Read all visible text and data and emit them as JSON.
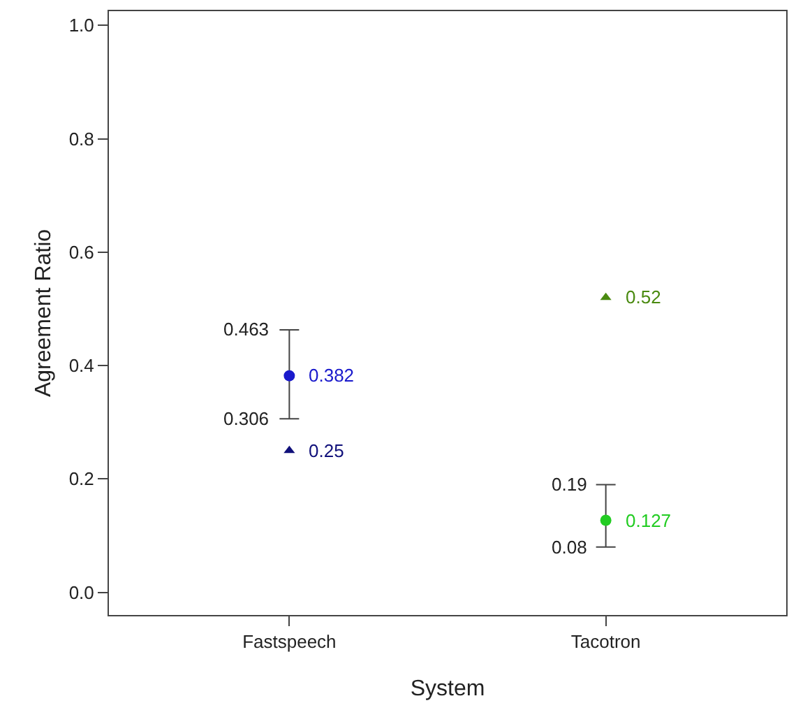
{
  "chart_data": {
    "type": "scatter",
    "xlabel": "System",
    "ylabel": "Agreement Ratio",
    "categories": [
      "Fastspeech",
      "Tacotron"
    ],
    "series": [
      {
        "marker": "circle",
        "colors": [
          "#1a1acc",
          "#22cc22"
        ],
        "values": [
          0.382,
          0.127
        ],
        "errors": [
          [
            0.306,
            0.463
          ],
          [
            0.08,
            0.19
          ]
        ]
      },
      {
        "marker": "triangle",
        "colors": [
          "#10107a",
          "#4a8a10"
        ],
        "values": [
          0.25,
          0.52
        ]
      }
    ],
    "annotations": [
      {
        "text": "0.463",
        "x": "Fastspeech",
        "y": 0.463
      },
      {
        "text": "0.306",
        "x": "Fastspeech",
        "y": 0.306
      },
      {
        "text": "0.19",
        "x": "Tacotron",
        "y": 0.19
      },
      {
        "text": "0.08",
        "x": "Tacotron",
        "y": 0.08
      }
    ],
    "data_labels": true,
    "ylim": [
      -0.04,
      1.025
    ],
    "yticks": [
      {
        "value": 0,
        "label": "0.0"
      },
      {
        "value": 0.2,
        "label": "0.2"
      },
      {
        "value": 0.4,
        "label": "0.4"
      },
      {
        "value": 0.6,
        "label": "0.6"
      },
      {
        "value": 0.8,
        "label": "0.8"
      },
      {
        "value": 1,
        "label": "1.0"
      }
    ]
  }
}
